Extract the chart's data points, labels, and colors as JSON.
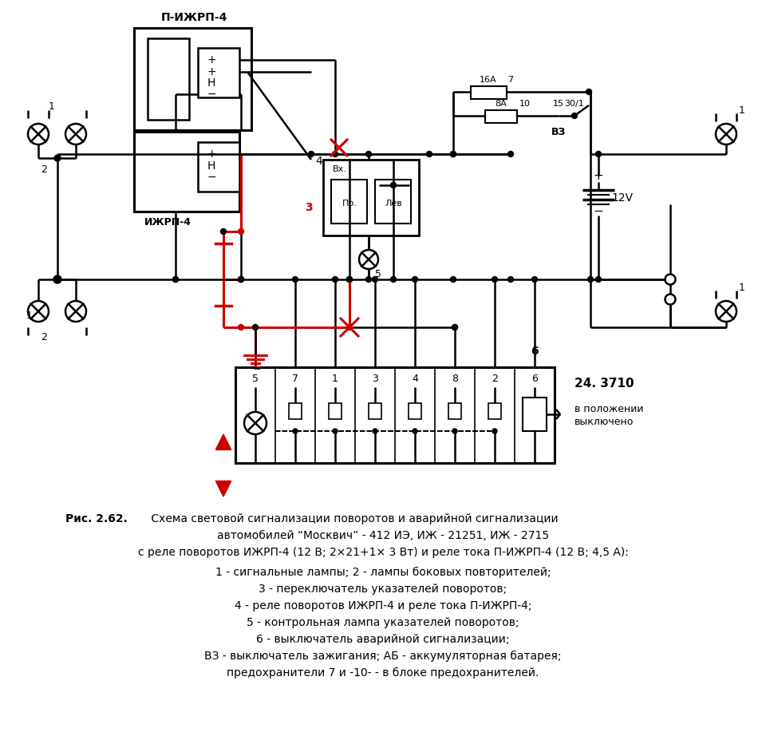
{
  "bg_color": "#ffffff",
  "line_color": "#000000",
  "red_color": "#cc0000",
  "title_pizhpr": "П-ИЖРП-4",
  "label_izhpr4": "ИЖРП-4",
  "label_24_3710": "24. 3710",
  "label_v_pol_1": "в положении",
  "label_v_pol_2": "выключено",
  "label_vx": "Вх.",
  "label_pr": "Пр.",
  "label_lev": "Лев",
  "label_16A": "16А",
  "label_8A": "8А",
  "label_10": "10",
  "label_15": "15",
  "label_30_1": "30/1",
  "label_vz": "ВЗ",
  "label_12v": "12V",
  "label_4": "4",
  "label_3": "3",
  "label_5": "5",
  "label_6": "6",
  "label_fuse7": "7",
  "sw_labels": [
    "5",
    "7",
    "1",
    "3",
    "4",
    "8",
    "2",
    "6"
  ],
  "cap_bold": "Рис. 2.62.",
  "cap1": " Схема световой сигнализации поворотов и аварийной сигнализации",
  "cap2": "автомобилей “Москвич” - 412 ИЭ, ИЖ - 21251, ИЖ - 2715",
  "cap3": "с реле поворотов ИЖРП-4 (12 В; 2×21+1× 3 Вт) и реле тока П-ИЖРП-4 (12 В; 4,5 А):",
  "cap4": "1 - сигнальные лампы; 2 - лампы боковых повторителей;",
  "cap5": "3 - переключатель указателей поворотов;",
  "cap6": "4 - реле поворотов ИЖРП-4 и реле тока П-ИЖРП-4;",
  "cap7": "5 - контрольная лампа указателей поворотов;",
  "cap8": "6 - выключатель аварийной сигнализации;",
  "cap9": "ВЗ - выключатель зажигания; АБ - аккумуляторная батарея;",
  "cap10": "предохранители 7 и ‐10‐ - в блоке предохранителей."
}
